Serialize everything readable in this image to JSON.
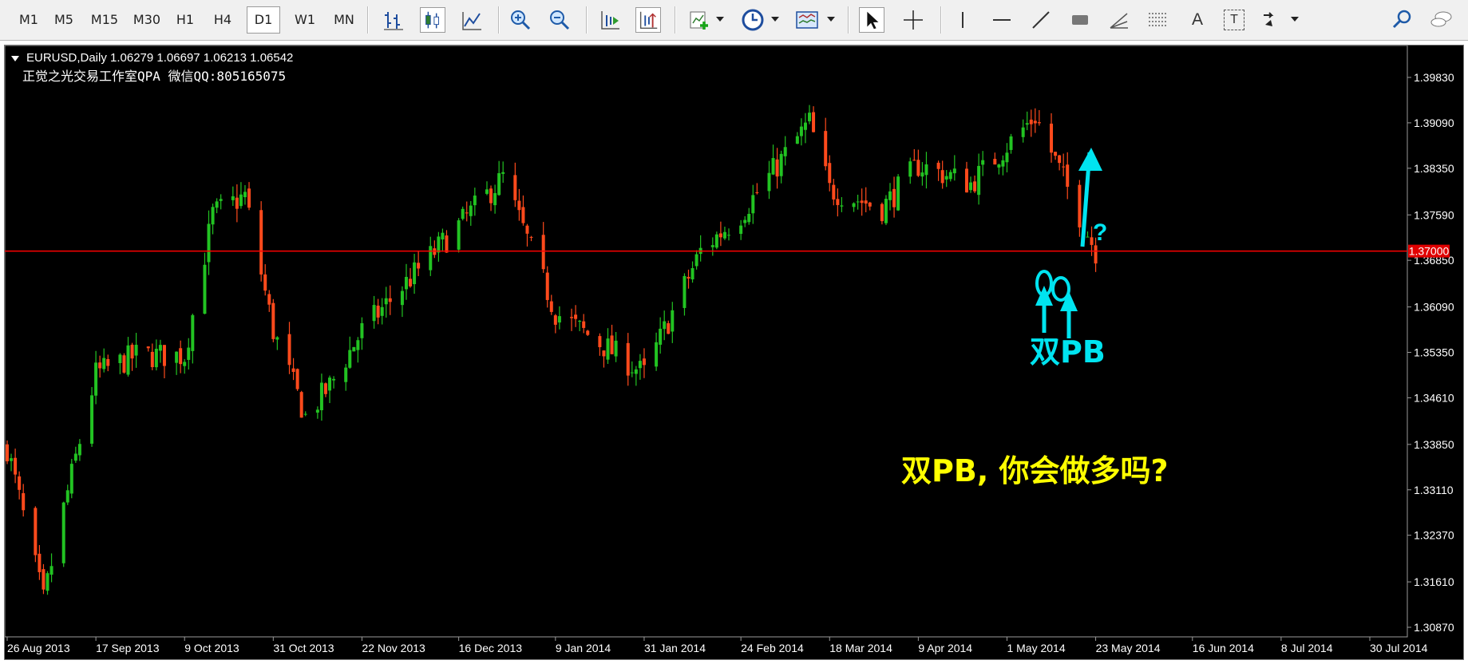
{
  "toolbar": {
    "timeframes": [
      "M1",
      "M5",
      "M15",
      "M30",
      "H1",
      "H4",
      "D1",
      "W1",
      "MN"
    ],
    "active_timeframe": "D1",
    "text_tool": "A",
    "text_label_tool": "T"
  },
  "chart": {
    "symbol_line": "EURUSD,Daily  1.06279 1.06697 1.06213 1.06542",
    "watermark": "正觉之光交易工作室QPA 微信QQ:805165075",
    "hline_price": "1.37000",
    "hline_value": 1.37,
    "price_ticks": [
      "1.39830",
      "1.39090",
      "1.38350",
      "1.37590",
      "1.36850",
      "1.36090",
      "1.35350",
      "1.34610",
      "1.33850",
      "1.33110",
      "1.32370",
      "1.31610",
      "1.30870"
    ],
    "date_ticks": [
      "26 Aug 2013",
      "17 Sep 2013",
      "9 Oct 2013",
      "31 Oct 2013",
      "22 Nov 2013",
      "16 Dec 2013",
      "9 Jan 2014",
      "31 Jan 2014",
      "24 Feb 2014",
      "18 Mar 2014",
      "9 Apr 2014",
      "1 May 2014",
      "23 May 2014",
      "16 Jun 2014",
      "8 Jul 2014",
      "30 Jul 2014"
    ],
    "annotation_question": "?",
    "annotation_label": "双PB",
    "annotation_big_text": "双PB, 你会做多吗?",
    "colors": {
      "background": "#000000",
      "bull": "#22c322",
      "bear": "#ff4a1c",
      "hline": "#ff0000",
      "annotation_cyan": "#00e4f0",
      "annotation_yellow": "#ffff00",
      "text": "#ffffff"
    }
  },
  "chart_data": {
    "type": "candlestick",
    "title": "EURUSD,Daily",
    "ylim": [
      1.3087,
      1.3983
    ],
    "x_range": [
      "26 Aug 2013",
      "30 Jul 2014"
    ],
    "close_path": [
      [
        "26 Aug 2013",
        1.338
      ],
      [
        "4 Sep 2013",
        1.313
      ],
      [
        "9 Sep 2013",
        1.328
      ],
      [
        "17 Sep 2013",
        1.35
      ],
      [
        "27 Sep 2013",
        1.353
      ],
      [
        "9 Oct 2013",
        1.353
      ],
      [
        "16 Oct 2013",
        1.376
      ],
      [
        "24 Oct 2013",
        1.379
      ],
      [
        "31 Oct 2013",
        1.357
      ],
      [
        "8 Nov 2013",
        1.343
      ],
      [
        "14 Nov 2013",
        1.348
      ],
      [
        "22 Nov 2013",
        1.357
      ],
      [
        "27 Dec 2013",
        1.382
      ],
      [
        "9 Jan 2014",
        1.36
      ],
      [
        "31 Jan 2014",
        1.35
      ],
      [
        "14 Feb 2014",
        1.37
      ],
      [
        "24 Feb 2014",
        1.376
      ],
      [
        "13 Mar 2014",
        1.391
      ],
      [
        "18 Mar 2014",
        1.38
      ],
      [
        "31 Mar 2014",
        1.377
      ],
      [
        "9 Apr 2014",
        1.384
      ],
      [
        "22 Apr 2014",
        1.381
      ],
      [
        "8 May 2014",
        1.392
      ],
      [
        "23 May 2014",
        1.37
      ]
    ]
  }
}
